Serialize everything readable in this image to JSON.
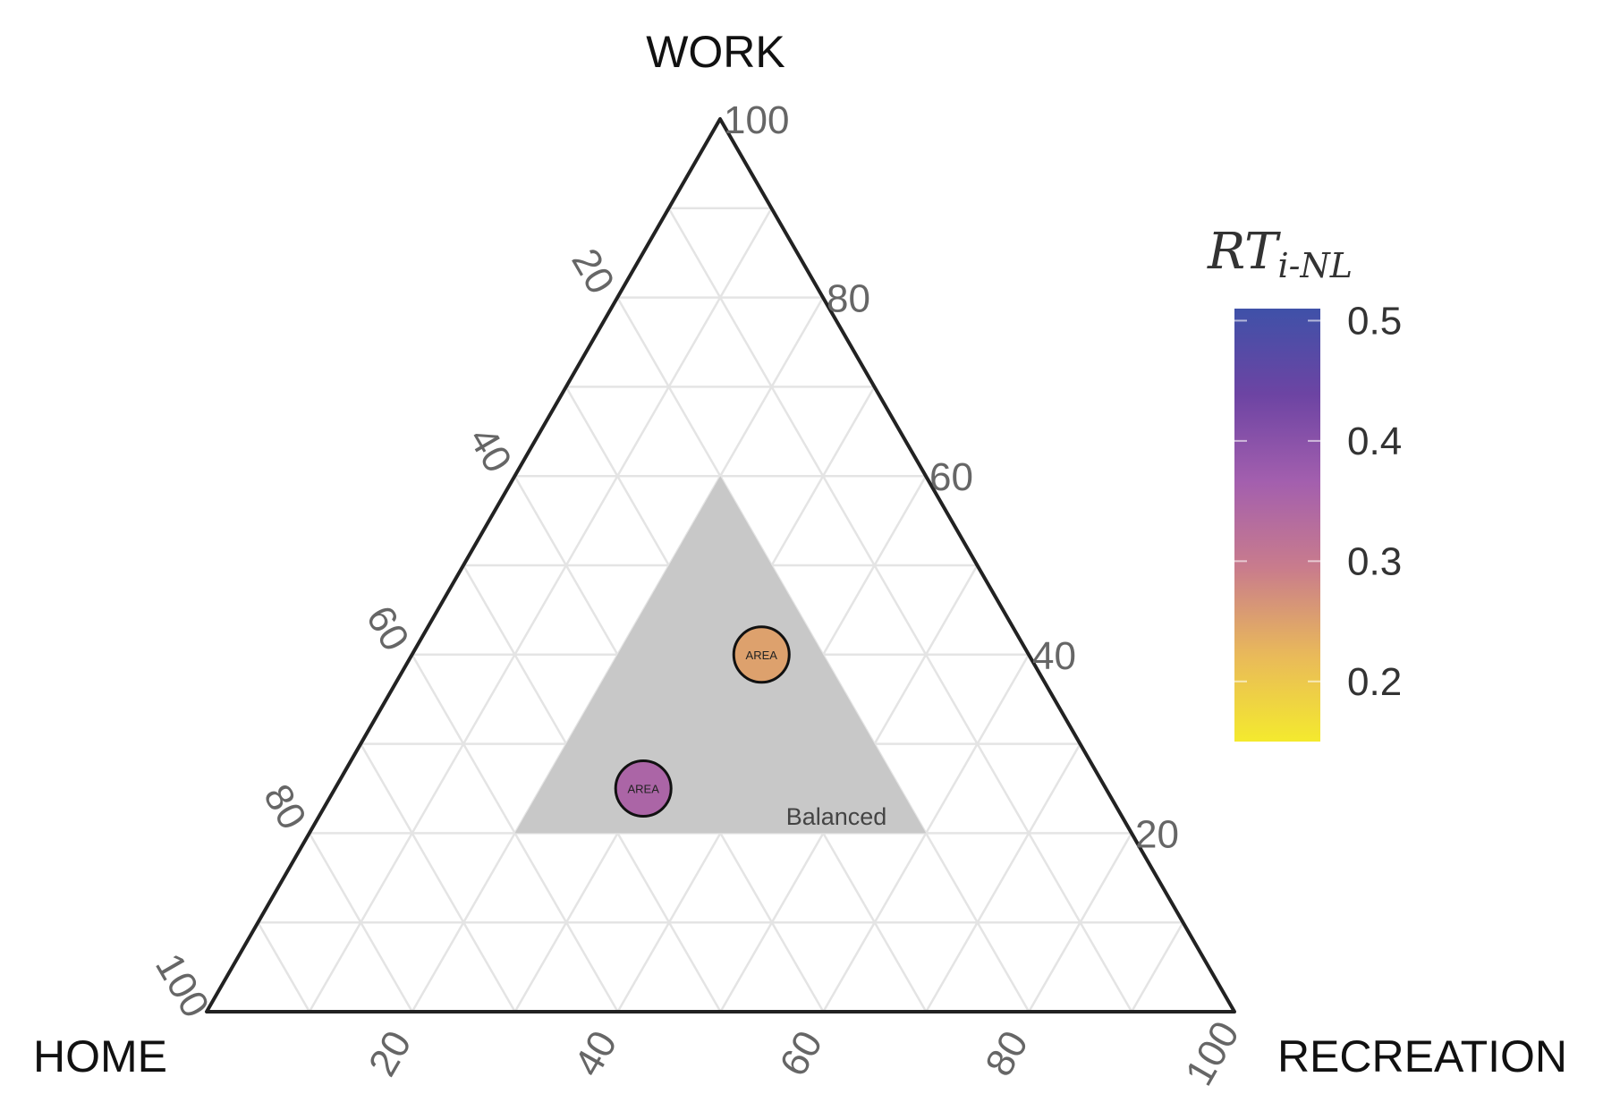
{
  "chart_data": {
    "type": "ternary",
    "axes": {
      "top": "WORK",
      "left": "HOME",
      "right": "RECREATION"
    },
    "axis_range": [
      0,
      100
    ],
    "ticks": [
      "20",
      "40",
      "60",
      "80",
      "100"
    ],
    "grid_step": 10,
    "region": {
      "label": "Balanced",
      "vertices": [
        {
          "work": 60,
          "home": 20,
          "recreation": 20
        },
        {
          "work": 20,
          "home": 60,
          "recreation": 20
        },
        {
          "work": 20,
          "home": 20,
          "recreation": 60
        }
      ],
      "color": "#c8c8c8"
    },
    "points": [
      {
        "label": "AREA",
        "work": 40,
        "home": 26,
        "recreation": 34,
        "value": 0.25
      },
      {
        "label": "AREA",
        "work": 25,
        "home": 45,
        "recreation": 30,
        "value": 0.35
      }
    ],
    "colorbar": {
      "title_main": "RT",
      "title_sub": "i-NL",
      "range": [
        0.15,
        0.51
      ],
      "ticks": [
        "0.2",
        "0.3",
        "0.4",
        "0.5"
      ],
      "colors": [
        "#f4ea2e",
        "#e9b95a",
        "#c97c8c",
        "#a35fae",
        "#6d44a3",
        "#3f51a8"
      ]
    }
  }
}
